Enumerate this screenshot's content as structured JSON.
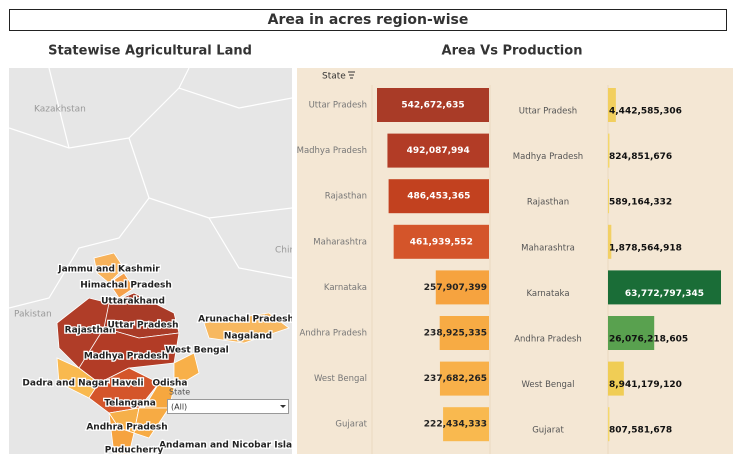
{
  "dashboard_title": "Area in acres region-wise",
  "map": {
    "title": "Statewise Agricultural Land",
    "countries": [
      "Kazakhstan",
      "Pakistan",
      "Chir"
    ],
    "states": [
      "Jammu and Kashmir",
      "Himachal Pradesh",
      "Uttarakhand",
      "Rajasthan",
      "Uttar Pradesh",
      "Arunachal Pradesh",
      "Nagaland",
      "Madhya Pradesh",
      "West Bengal",
      "Dadra and Nagar Haveli",
      "Odisha",
      "Telangana",
      "Andhra Pradesh",
      "Andaman and Nicobar Island",
      "Puducherry"
    ],
    "filter": {
      "label": "State",
      "value": "(All)"
    }
  },
  "panel_title": "Area Vs Production",
  "column_header": "State",
  "chart_data": [
    {
      "type": "bar",
      "orientation": "horizontal-reversed",
      "categories": [
        "Uttar Pradesh",
        "Madhya Pradesh",
        "Rajasthan",
        "Maharashtra",
        "Karnataka",
        "Andhra Pradesh",
        "West Bengal",
        "Gujarat"
      ],
      "values": [
        542672635,
        492087994,
        486453365,
        461939552,
        257907399,
        238925335,
        237682265,
        222434333
      ],
      "value_labels": [
        "542,672,635",
        "492,087,994",
        "486,453,365",
        "461,939,552",
        "257,907,399",
        "238,925,335",
        "237,682,265",
        "222,434,333"
      ],
      "colors": [
        "#a93b27",
        "#b23c26",
        "#c2411f",
        "#d4552a",
        "#f6a33f",
        "#f7ab44",
        "#f8b049",
        "#f9b94f"
      ]
    },
    {
      "type": "bar",
      "orientation": "horizontal",
      "categories": [
        "Uttar Pradesh",
        "Madhya Pradesh",
        "Rajasthan",
        "Maharashtra",
        "Karnataka",
        "Andhra Pradesh",
        "West Bengal",
        "Gujarat"
      ],
      "values": [
        4442585306,
        824851676,
        589164332,
        1878564918,
        63772797345,
        26076218605,
        8941179120,
        807581678
      ],
      "value_labels": [
        "4,442,585,306",
        "824,851,676",
        "589,164,332",
        "1,878,564,918",
        "63,772,797,345",
        "26,076,218,605",
        "8,941,179,120",
        "807,581,678"
      ],
      "colors": [
        "#f2cf5e",
        "#f4d76a",
        "#f4d76a",
        "#f2d064",
        "#1a6d37",
        "#59a14f",
        "#f0cd55",
        "#f5d86b"
      ]
    }
  ]
}
